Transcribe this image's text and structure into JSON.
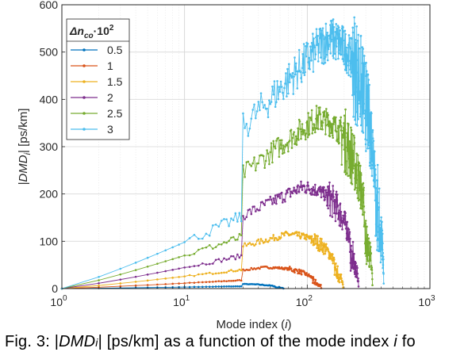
{
  "chart_data": {
    "type": "line",
    "xscale": "log",
    "xlim": [
      1,
      1000
    ],
    "ylim": [
      0,
      600
    ],
    "xticks": [
      {
        "value": 1,
        "base": "10",
        "exp": "0"
      },
      {
        "value": 10,
        "base": "10",
        "exp": "1"
      },
      {
        "value": 100,
        "base": "10",
        "exp": "2"
      },
      {
        "value": 1000,
        "base": "10",
        "exp": "3"
      }
    ],
    "yticks": [
      "0",
      "100",
      "200",
      "300",
      "400",
      "500",
      "600"
    ],
    "xlabel": {
      "text": "Mode index (",
      "italic": "i",
      "close": ")"
    },
    "ylabel": {
      "text": " [ps/km]",
      "main": "|DMD",
      "sub": "i",
      "close": "|"
    },
    "grid": true,
    "legend": {
      "placement": "top-left",
      "title_main": "Δn",
      "title_sub": "co",
      "title_tail": "·10",
      "title_sup": "2"
    },
    "series": [
      {
        "name": "0.5",
        "color": "#0072BD",
        "peak": 10,
        "maxMode": 64,
        "noise": 0.08
      },
      {
        "name": "1",
        "color": "#D95319",
        "peak": 45,
        "maxMode": 130,
        "noise": 0.1
      },
      {
        "name": "1.5",
        "color": "#EDB120",
        "peak": 115,
        "maxMode": 196,
        "noise": 0.12
      },
      {
        "name": "2",
        "color": "#7E2F8E",
        "peak": 215,
        "maxMode": 262,
        "noise": 0.14
      },
      {
        "name": "2.5",
        "color": "#77AC30",
        "peak": 360,
        "maxMode": 340,
        "noise": 0.16
      },
      {
        "name": "3",
        "color": "#4DBEEE",
        "peak": 530,
        "maxMode": 420,
        "noise": 0.18
      }
    ]
  },
  "caption": {
    "prefix": "Fig. 3: |",
    "dmd": "DMD",
    "sub": "i",
    "middle": "| [ps/km] as a function of the mode index ",
    "ivar": "i",
    "suffix": " fo"
  }
}
